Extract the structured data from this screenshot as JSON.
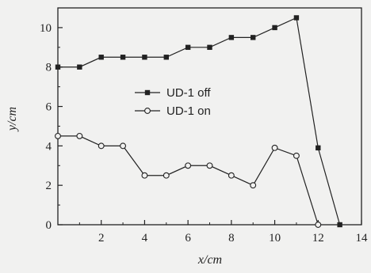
{
  "chart_data": {
    "type": "line",
    "xlabel": "x/cm",
    "ylabel": "y/cm",
    "xlim": [
      0,
      14
    ],
    "ylim": [
      0,
      11
    ],
    "xticks": [
      2,
      4,
      6,
      8,
      10,
      12,
      14
    ],
    "yticks": [
      0,
      2,
      4,
      6,
      8,
      10
    ],
    "grid": false,
    "legend_position": "center-left",
    "series": [
      {
        "name": "UD-1 off",
        "marker": "filled-square",
        "x": [
          0,
          1,
          2,
          3,
          4,
          5,
          6,
          7,
          8,
          9,
          10,
          11,
          12,
          13
        ],
        "y": [
          8.0,
          8.0,
          8.5,
          8.5,
          8.5,
          8.5,
          9.0,
          9.0,
          9.5,
          9.5,
          10.0,
          10.5,
          3.9,
          0.0
        ]
      },
      {
        "name": "UD-1 on",
        "marker": "open-circle",
        "x": [
          0,
          1,
          2,
          3,
          4,
          5,
          6,
          7,
          8,
          9,
          10,
          11,
          12
        ],
        "y": [
          4.5,
          4.5,
          4.0,
          4.0,
          2.5,
          2.5,
          3.0,
          3.0,
          2.5,
          2.0,
          3.9,
          3.5,
          0.0
        ]
      }
    ],
    "colors": {
      "ink": "#222222",
      "background": "#f1f1f0"
    }
  }
}
